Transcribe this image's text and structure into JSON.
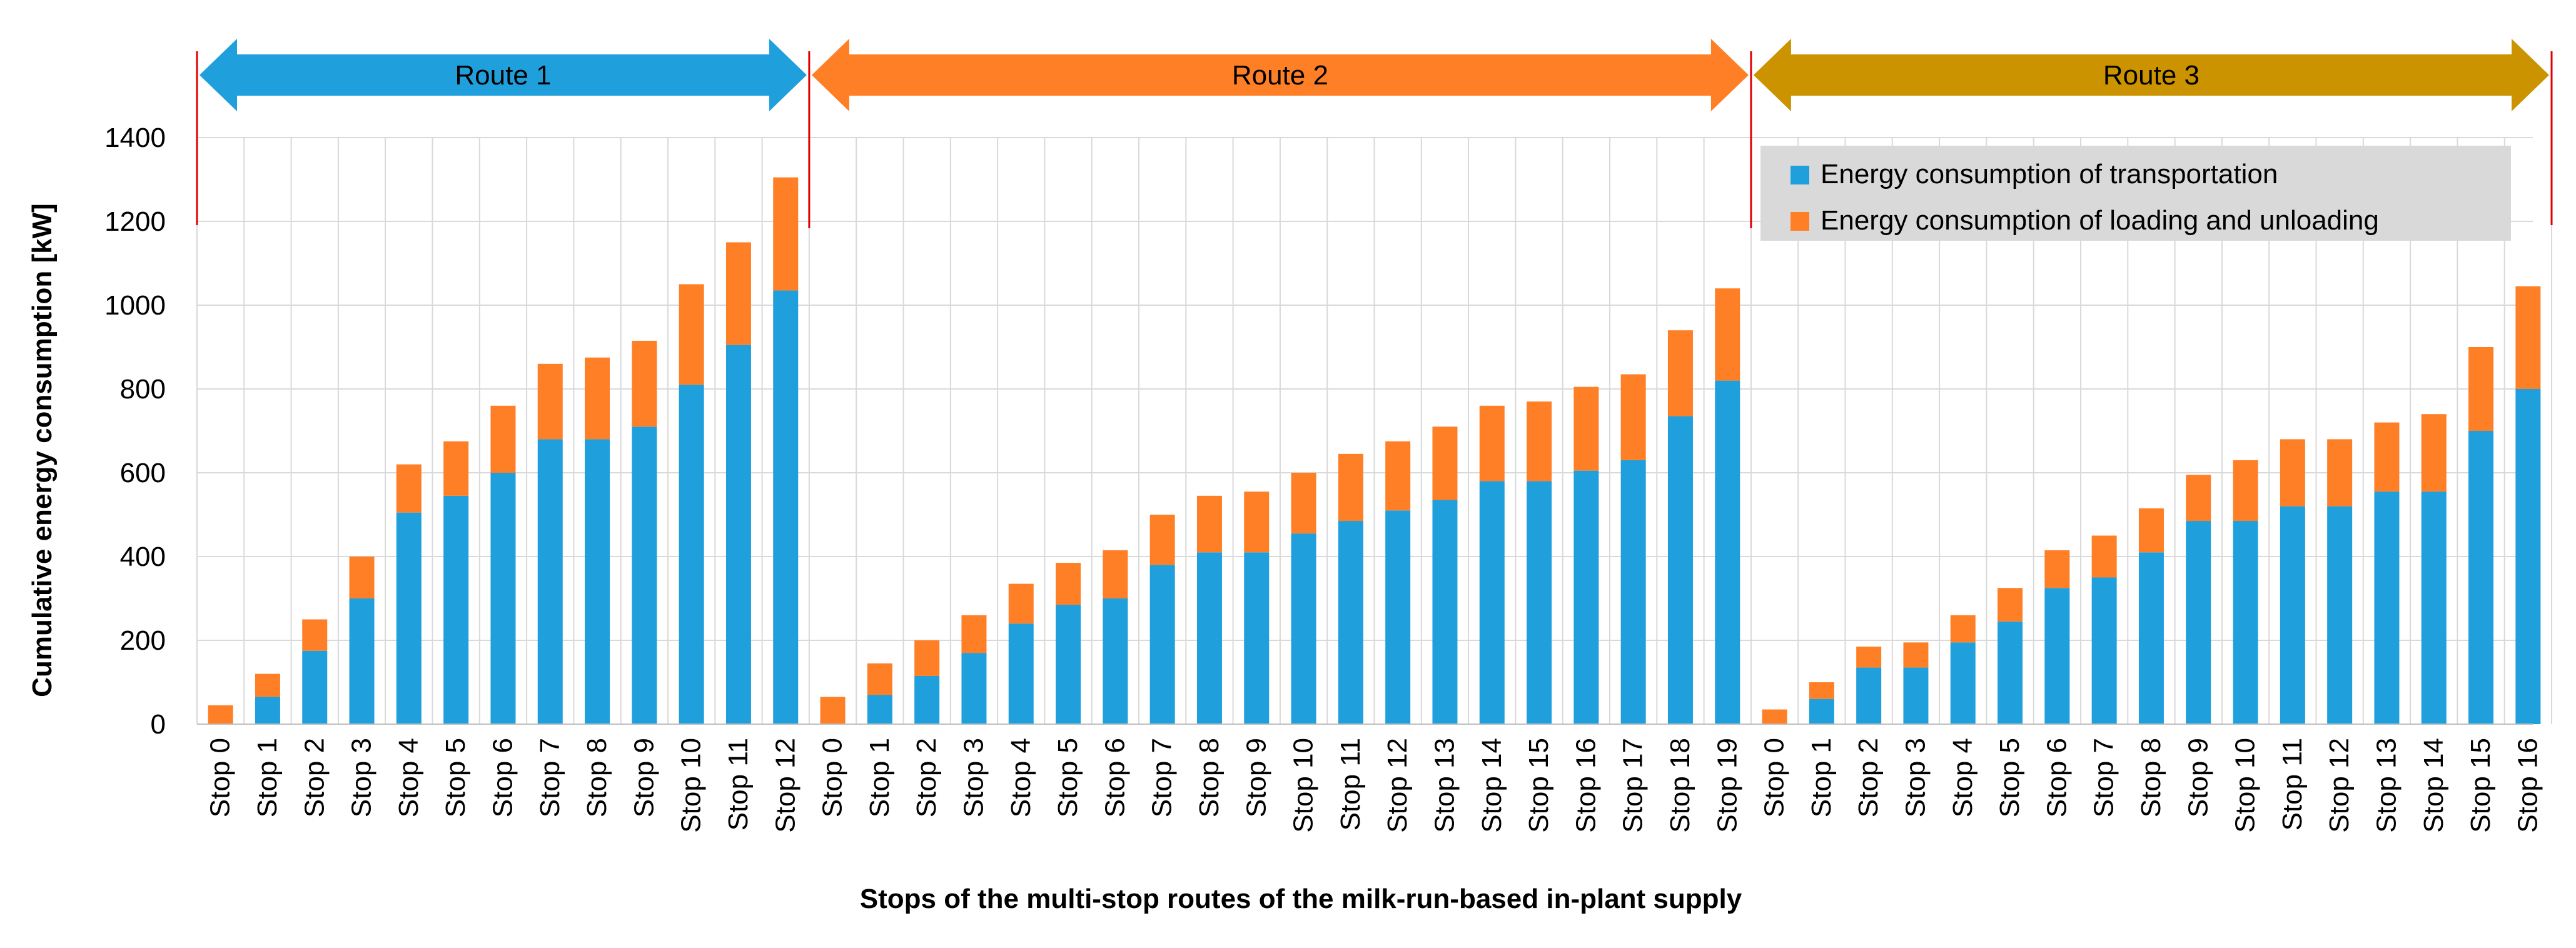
{
  "chart_data": {
    "type": "bar",
    "stacked": true,
    "title": "",
    "xlabel": "Stops of the multi-stop routes of the milk-run-based in-plant supply",
    "ylabel": "Cumulative energy consumption [kW]",
    "ylim": [
      0,
      1400
    ],
    "yticks": [
      0,
      200,
      400,
      600,
      800,
      1000,
      1200,
      1400
    ],
    "grid": true,
    "legend_position": "top-right",
    "series_names": [
      "Energy consumption of transportation",
      "Energy consumption of loading and unloading"
    ],
    "colors": {
      "transport": "#1F9FDC",
      "loading": "#FF7F27",
      "route1": "#1F9FDC",
      "route2": "#FF7F27",
      "route3": "#CC9300",
      "separator": "#E00000",
      "grid": "#D9D9D9"
    },
    "routes": [
      {
        "name": "Route 1",
        "categories": [
          "Stop 0",
          "Stop 1",
          "Stop 2",
          "Stop 3",
          "Stop 4",
          "Stop 5",
          "Stop 6",
          "Stop 7",
          "Stop 8",
          "Stop 9",
          "Stop 10",
          "Stop 11",
          "Stop 12"
        ],
        "transport": [
          0,
          65,
          175,
          300,
          505,
          545,
          600,
          680,
          680,
          710,
          810,
          905,
          1035
        ],
        "loading": [
          45,
          55,
          75,
          100,
          115,
          130,
          160,
          180,
          195,
          205,
          240,
          245,
          270
        ]
      },
      {
        "name": "Route 2",
        "categories": [
          "Stop 0",
          "Stop 1",
          "Stop 2",
          "Stop 3",
          "Stop 4",
          "Stop 5",
          "Stop 6",
          "Stop 7",
          "Stop 8",
          "Stop 9",
          "Stop 10",
          "Stop 11",
          "Stop 12",
          "Stop 13",
          "Stop 14",
          "Stop 15",
          "Stop 16",
          "Stop 17",
          "Stop 18",
          "Stop 19"
        ],
        "transport": [
          0,
          70,
          115,
          170,
          240,
          285,
          300,
          380,
          410,
          410,
          455,
          485,
          510,
          535,
          580,
          580,
          605,
          630,
          735,
          820
        ],
        "loading": [
          65,
          75,
          85,
          90,
          95,
          100,
          115,
          120,
          135,
          145,
          145,
          160,
          165,
          175,
          180,
          190,
          200,
          205,
          205,
          220
        ]
      },
      {
        "name": "Route 3",
        "categories": [
          "Stop 0",
          "Stop 1",
          "Stop 2",
          "Stop 3",
          "Stop 4",
          "Stop 5",
          "Stop 6",
          "Stop 7",
          "Stop 8",
          "Stop 9",
          "Stop 10",
          "Stop 11",
          "Stop 12",
          "Stop 13",
          "Stop 14",
          "Stop 15",
          "Stop 16"
        ],
        "transport": [
          0,
          60,
          135,
          135,
          195,
          245,
          325,
          350,
          410,
          485,
          485,
          520,
          520,
          555,
          555,
          700,
          800
        ],
        "loading": [
          35,
          40,
          50,
          60,
          65,
          80,
          90,
          100,
          105,
          110,
          145,
          160,
          160,
          165,
          185,
          200,
          245
        ]
      }
    ]
  }
}
